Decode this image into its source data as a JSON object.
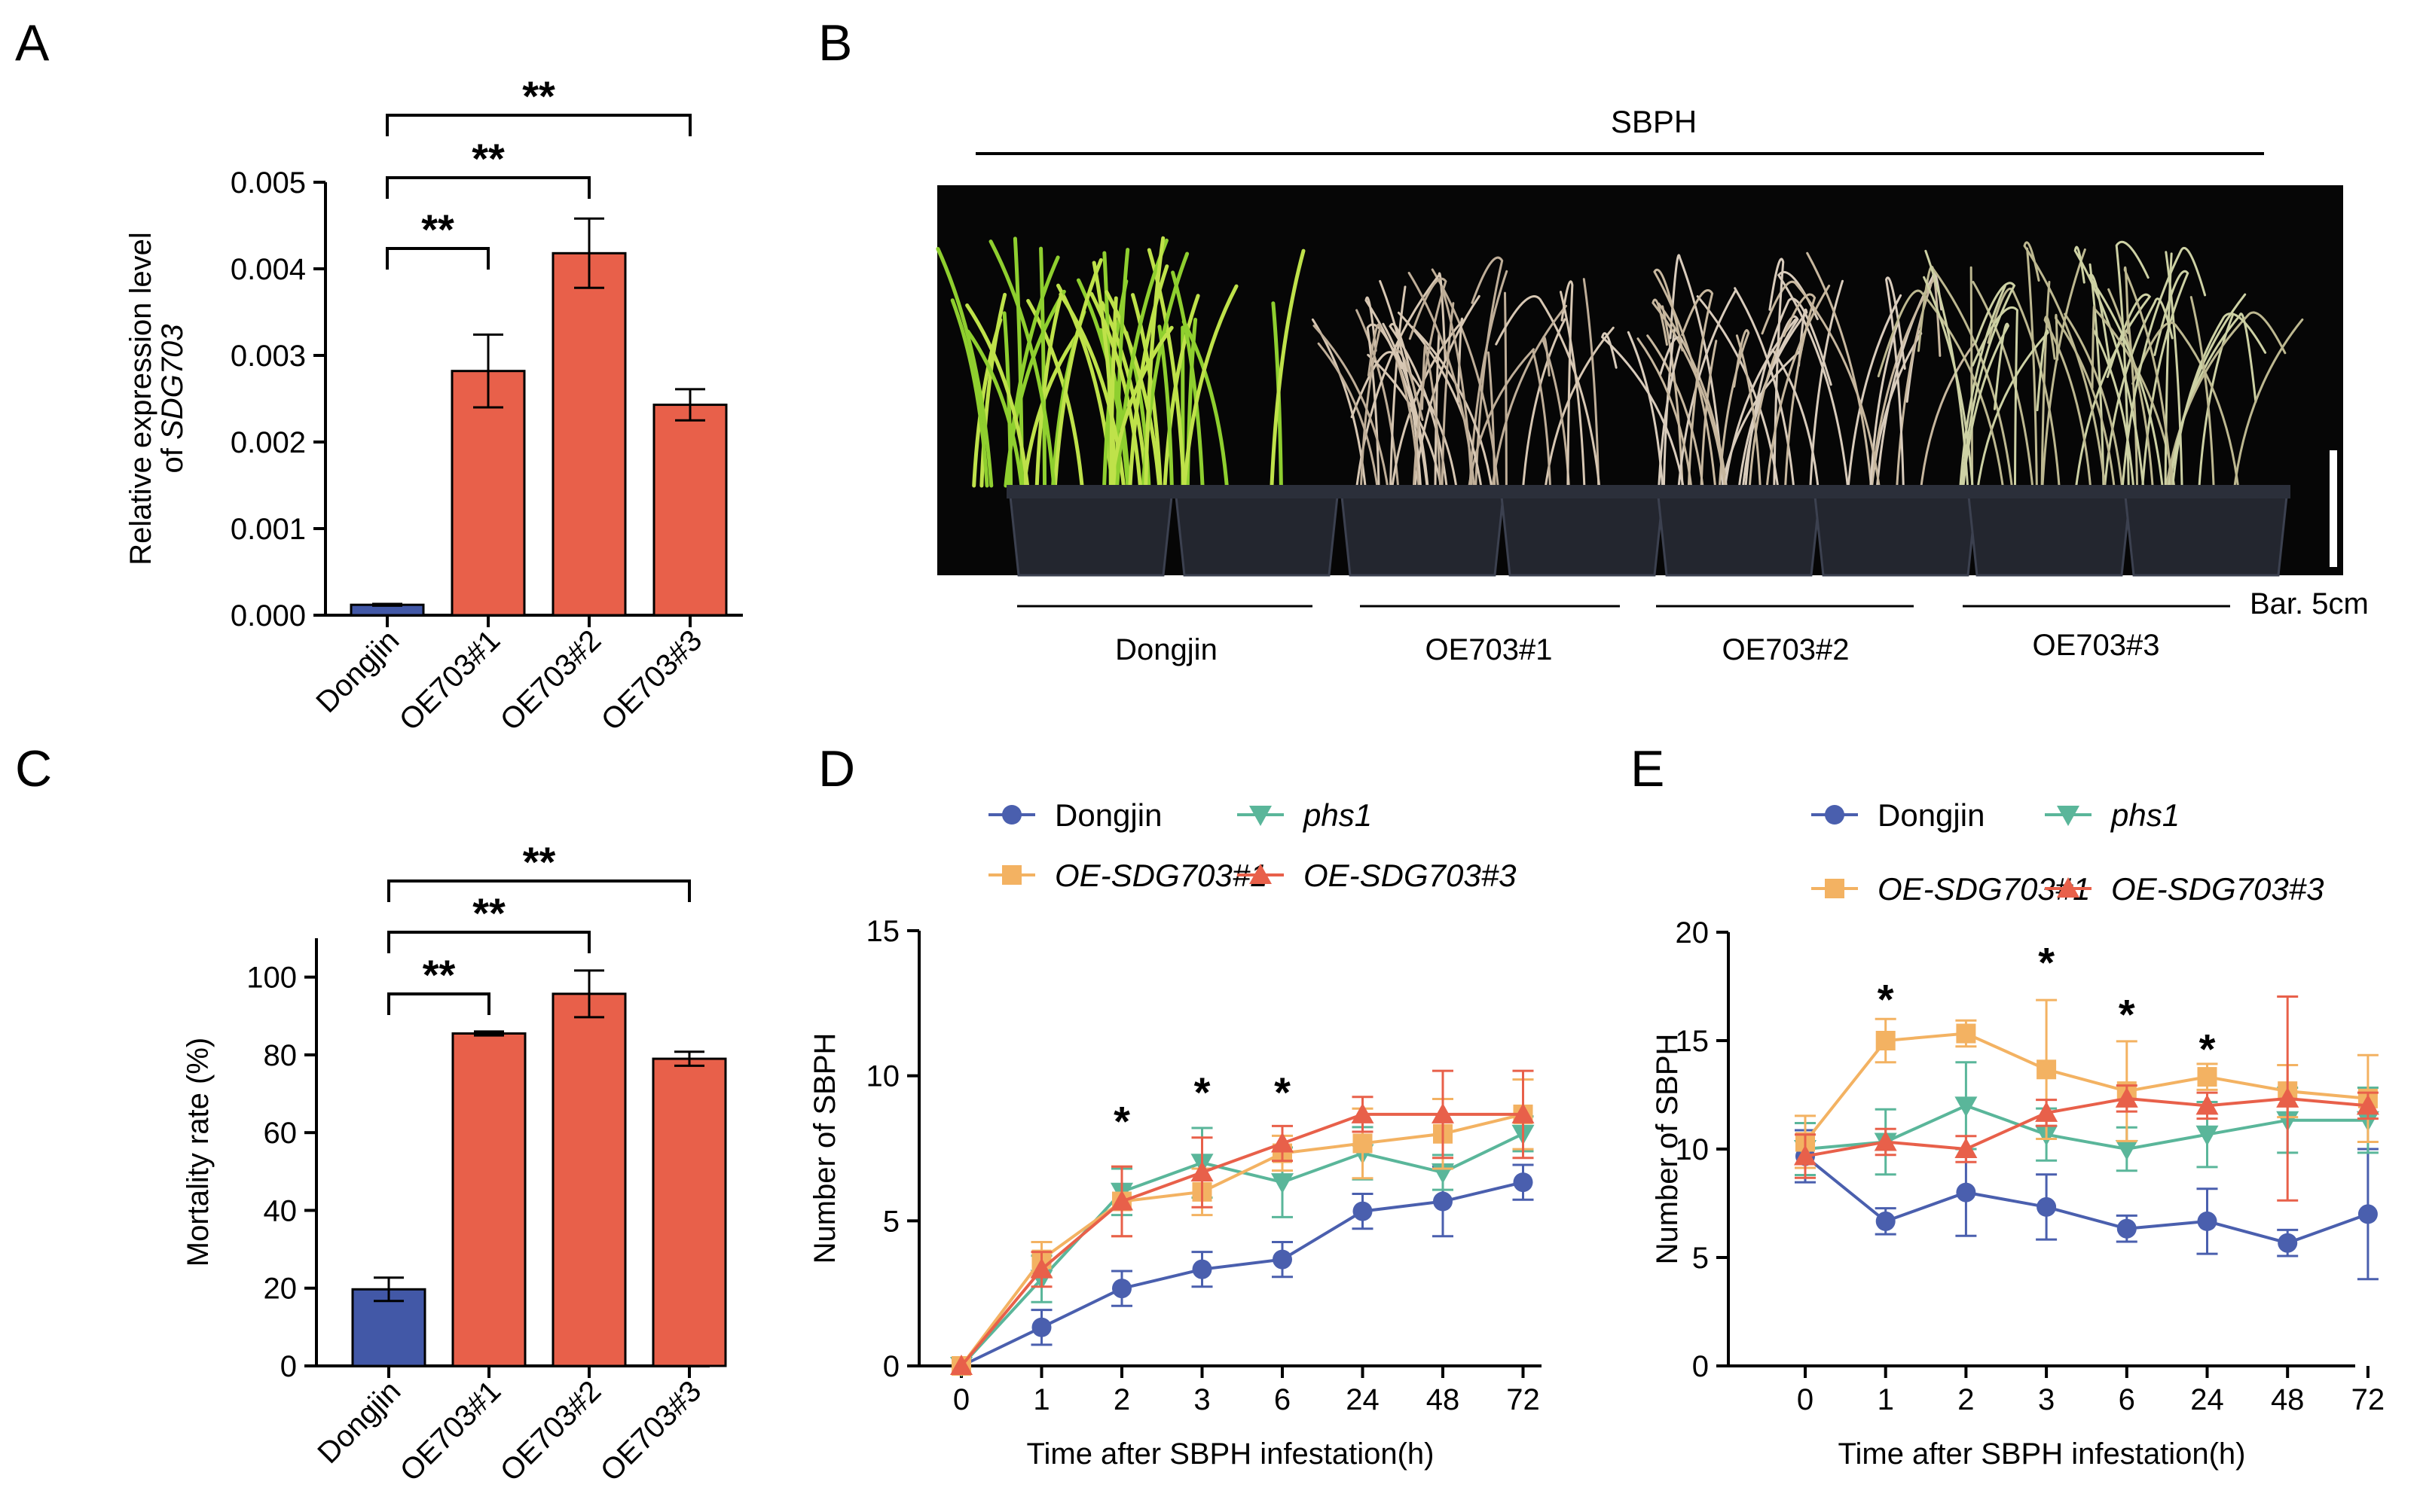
{
  "panel_labels": [
    "A",
    "B",
    "C",
    "D",
    "E"
  ],
  "colors": {
    "control": "#4258a7",
    "overexpression": "#e8604a",
    "dongjin_line": "#4a5fae",
    "phs1": "#5ab69a",
    "oe1": "#f3b262",
    "oe3": "#e8604a",
    "photo_bg": "#060606"
  },
  "photo": {
    "treatment": "SBPH",
    "scale_bar": "Bar. 5cm",
    "groups": [
      "Dongjin",
      "OE703#1",
      "OE703#2",
      "OE703#3"
    ]
  },
  "chart_data": [
    {
      "id": "A",
      "type": "bar",
      "categories": [
        "Dongjin",
        "OE703#1",
        "OE703#2",
        "OE703#3"
      ],
      "values": [
        0.00012,
        0.00282,
        0.00418,
        0.00243
      ],
      "errors": [
        1e-05,
        0.00042,
        0.0004,
        0.00018
      ],
      "title": "",
      "xlabel": "",
      "ylabel_line1": "Relative expression level",
      "ylabel_line2_prefix": "of ",
      "ylabel_line2_gene": "SDG703",
      "ylim": [
        0,
        0.005
      ],
      "yticks": [
        "0.000",
        "0.001",
        "0.002",
        "0.003",
        "0.004",
        "0.005"
      ],
      "significance": [
        {
          "from": 0,
          "to": 1,
          "label": "**"
        },
        {
          "from": 0,
          "to": 2,
          "label": "**"
        },
        {
          "from": 0,
          "to": 3,
          "label": "**"
        }
      ]
    },
    {
      "id": "C",
      "type": "bar",
      "categories": [
        "Dongjin",
        "OE703#1",
        "OE703#2",
        "OE703#3"
      ],
      "values": [
        19.7,
        85.5,
        95.7,
        79
      ],
      "errors": [
        3,
        0.5,
        6,
        1.8
      ],
      "title": "",
      "xlabel": "",
      "ylabel": "Mortality rate (%)",
      "ylim": [
        0,
        110
      ],
      "yticks": [
        "0",
        "20",
        "40",
        "60",
        "80",
        "100"
      ],
      "significance": [
        {
          "from": 0,
          "to": 1,
          "label": "**"
        },
        {
          "from": 0,
          "to": 2,
          "label": "**"
        },
        {
          "from": 0,
          "to": 3,
          "label": "**"
        }
      ]
    },
    {
      "id": "D",
      "type": "line",
      "categories": [
        "0",
        "1",
        "2",
        "3",
        "6",
        "24",
        "48",
        "72"
      ],
      "xlabel": "Time after SBPH infestation(h)",
      "ylabel": "Number of SBPH",
      "ylim": [
        0,
        15
      ],
      "yticks": [
        "0",
        "5",
        "10",
        "15"
      ],
      "series": [
        {
          "name": "Dongjin",
          "italic": false,
          "marker": "circle",
          "values": [
            0,
            1.33,
            2.67,
            3.33,
            3.67,
            5.33,
            5.67,
            6.33
          ],
          "errors": [
            0,
            0.6,
            0.6,
            0.6,
            0.6,
            0.6,
            1.2,
            0.6
          ]
        },
        {
          "name": "phs1",
          "italic": true,
          "marker": "triangle-down",
          "values": [
            0,
            3,
            6,
            7,
            6.33,
            7.33,
            6.67,
            8
          ],
          "errors": [
            0,
            0.8,
            0.8,
            1.2,
            1.2,
            0.9,
            0.6,
            0.6
          ]
        },
        {
          "name": "OE-SDG703#1",
          "italic": true,
          "marker": "square",
          "values": [
            0,
            3.67,
            5.67,
            6,
            7.33,
            7.67,
            8,
            8.67
          ],
          "errors": [
            0,
            0.6,
            1.2,
            0.8,
            0.6,
            1.2,
            1.2,
            1.2
          ]
        },
        {
          "name": "OE-SDG703#3",
          "italic": true,
          "marker": "triangle-up",
          "values": [
            0,
            3.33,
            5.67,
            6.67,
            7.67,
            8.67,
            8.67,
            8.67
          ],
          "errors": [
            0,
            0.6,
            1.2,
            1.2,
            0.6,
            0.6,
            1.5,
            1.5
          ]
        }
      ],
      "annotations": [
        {
          "x_index": 2,
          "y": 8.5,
          "label": "*"
        },
        {
          "x_index": 3,
          "y": 9.5,
          "label": "*"
        },
        {
          "x_index": 4,
          "y": 9.5,
          "label": "*"
        }
      ]
    },
    {
      "id": "E",
      "type": "line",
      "categories": [
        "0",
        "1",
        "2",
        "3",
        "6",
        "24",
        "48",
        "72"
      ],
      "xlabel": "Time after SBPH infestation(h)",
      "ylabel": "Number of SBPH",
      "ylim": [
        0,
        20
      ],
      "yticks": [
        "0",
        "5",
        "10",
        "15",
        "20"
      ],
      "series": [
        {
          "name": "Dongjin",
          "italic": false,
          "marker": "circle",
          "values": [
            9.67,
            6.67,
            8,
            7.33,
            6.33,
            6.67,
            5.67,
            7
          ],
          "errors": [
            1.2,
            0.6,
            2,
            1.5,
            0.6,
            1.5,
            0.6,
            3
          ]
        },
        {
          "name": "phs1",
          "italic": true,
          "marker": "triangle-down",
          "values": [
            10,
            10.33,
            12,
            10.67,
            10,
            10.67,
            11.33,
            11.33
          ],
          "errors": [
            1.2,
            1.5,
            2,
            1.2,
            1,
            1.5,
            1.5,
            1.5
          ]
        },
        {
          "name": "OE-SDG703#1",
          "italic": true,
          "marker": "square",
          "values": [
            10.33,
            15,
            15.33,
            13.67,
            12.67,
            13.33,
            12.67,
            12.33
          ],
          "errors": [
            1.2,
            1,
            0.6,
            3.2,
            2.3,
            0.6,
            1.2,
            2
          ]
        },
        {
          "name": "OE-SDG703#3",
          "italic": true,
          "marker": "triangle-up",
          "values": [
            9.67,
            10.33,
            10,
            11.67,
            12.33,
            12,
            12.33,
            12
          ],
          "errors": [
            1,
            0.6,
            0.6,
            0.6,
            0.6,
            0.6,
            4.7,
            0.6
          ]
        }
      ],
      "annotations": [
        {
          "x_index": 1,
          "y": 17,
          "label": "*"
        },
        {
          "x_index": 3,
          "y": 18.7,
          "label": "*"
        },
        {
          "x_index": 4,
          "y": 16.3,
          "label": "*"
        },
        {
          "x_index": 5,
          "y": 14.7,
          "label": "*"
        }
      ]
    }
  ]
}
